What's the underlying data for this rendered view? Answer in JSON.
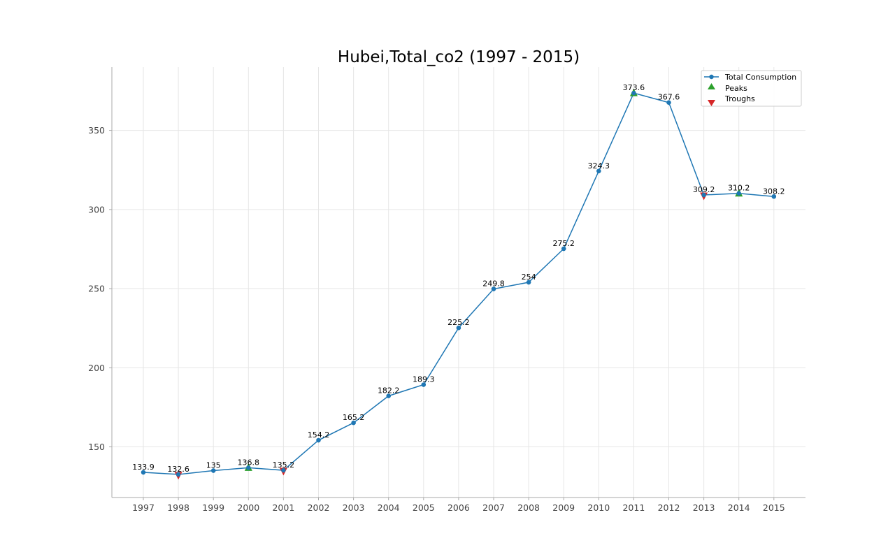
{
  "chart_data": {
    "type": "line",
    "title": "Hubei,Total_co2 (1997 - 2015)",
    "xlabel": "",
    "ylabel": "",
    "categories": [
      "1997",
      "1998",
      "1999",
      "2000",
      "2001",
      "2002",
      "2003",
      "2004",
      "2005",
      "2006",
      "2007",
      "2008",
      "2009",
      "2010",
      "2011",
      "2012",
      "2013",
      "2014",
      "2015"
    ],
    "series": [
      {
        "name": "Total Consumption",
        "values": [
          133.9,
          132.6,
          135,
          136.8,
          135.2,
          154.2,
          165.2,
          182.2,
          189.3,
          225.2,
          249.8,
          254,
          275.2,
          324.3,
          373.6,
          367.6,
          309.2,
          310.2,
          308.2
        ],
        "labels": [
          "133.9",
          "132.6",
          "135",
          "136.8",
          "135.2",
          "154.2",
          "165.2",
          "182.2",
          "189.3",
          "225.2",
          "249.8",
          "254",
          "275.2",
          "324.3",
          "373.6",
          "367.6",
          "309.2",
          "310.2",
          "308.2"
        ],
        "color": "#1f77b4"
      }
    ],
    "peaks": {
      "name": "Peaks",
      "x": [
        "2000",
        "2011",
        "2014"
      ],
      "values": [
        136.8,
        373.6,
        310.2
      ],
      "color": "#2ca02c"
    },
    "troughs": {
      "name": "Troughs",
      "x": [
        "1998",
        "2001",
        "2013"
      ],
      "values": [
        132.6,
        135.2,
        309.2
      ],
      "color": "#d62728"
    },
    "yticks": [
      150,
      200,
      250,
      300,
      350
    ],
    "ylim": [
      118,
      390
    ],
    "grid": true,
    "legend_position": "top-right"
  }
}
